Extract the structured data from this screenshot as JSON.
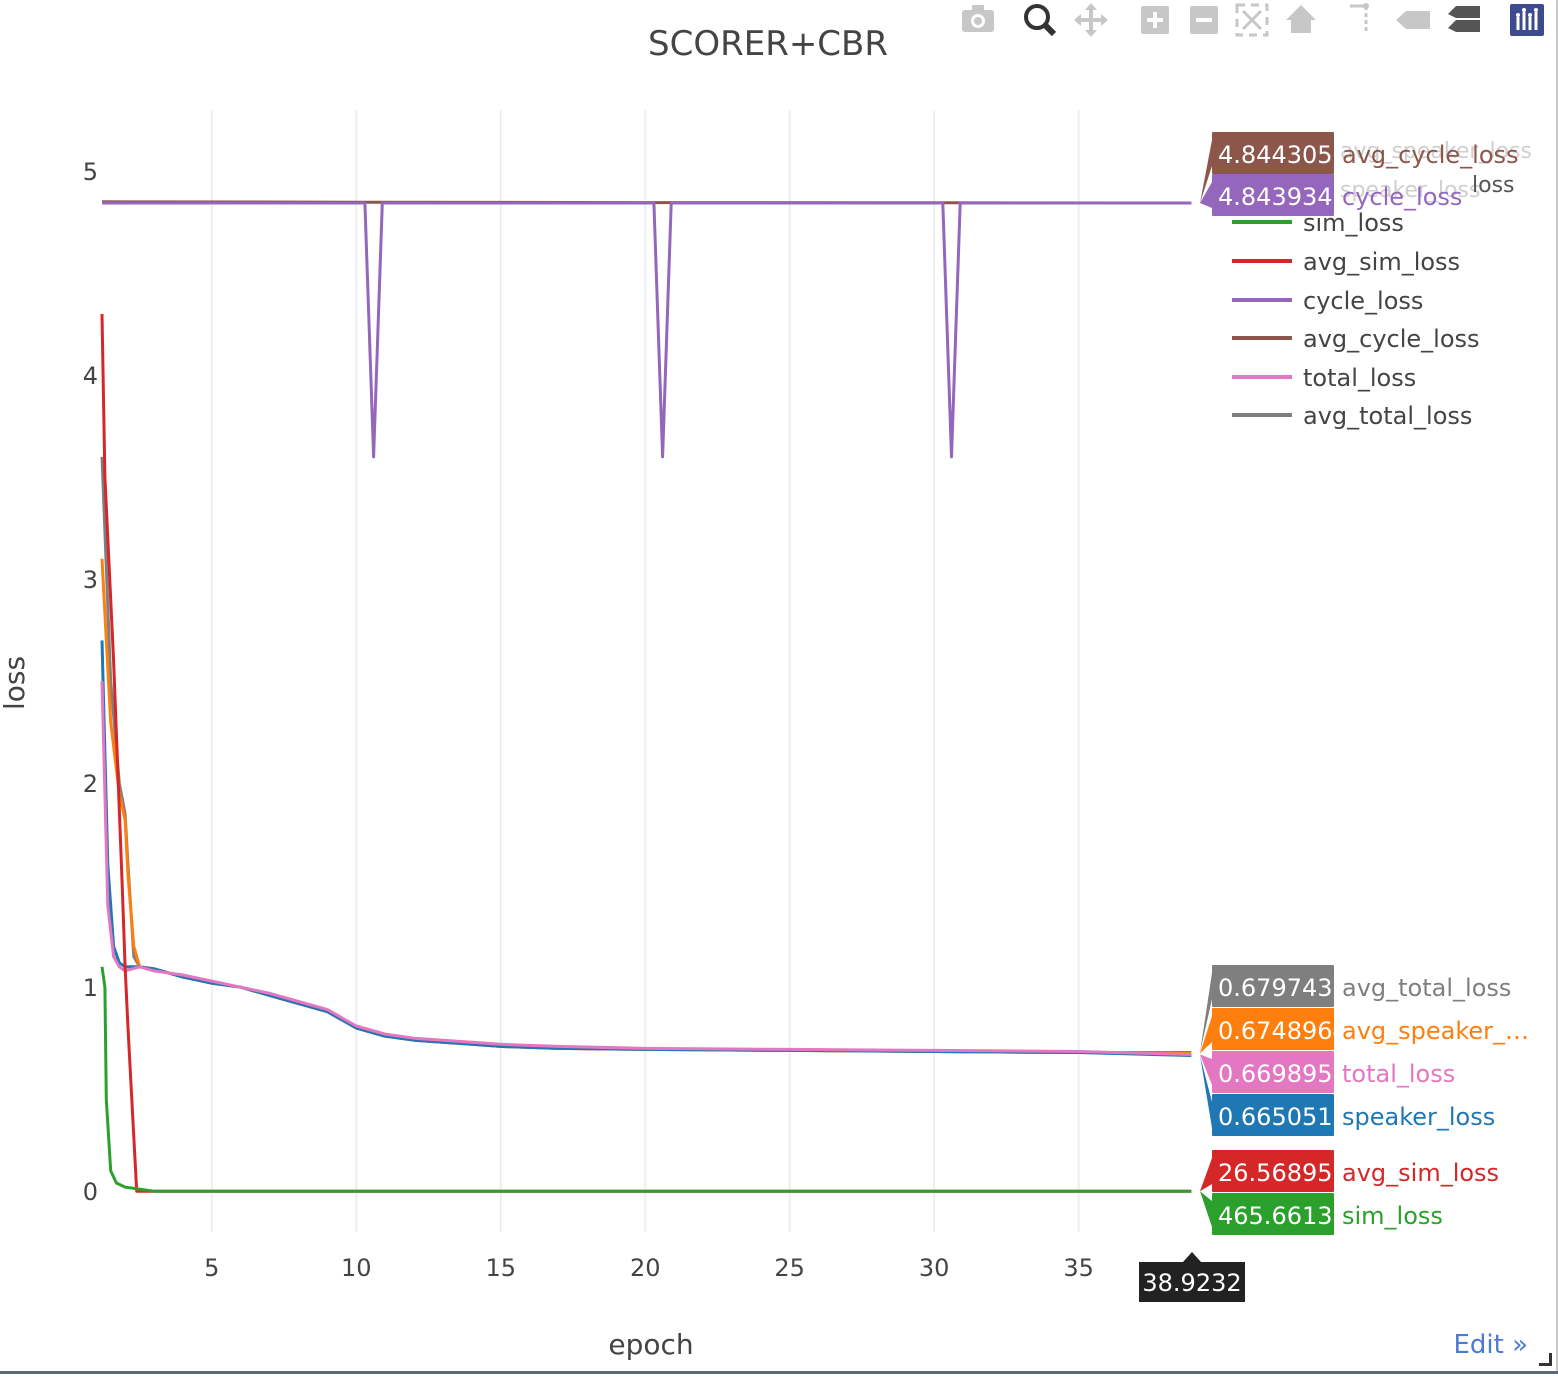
{
  "chart_data": {
    "type": "line",
    "title": "SCORER+CBR",
    "xlabel": "epoch",
    "ylabel": "loss",
    "xlim": [
      1.2,
      39.2
    ],
    "ylim": [
      -0.2,
      5.3
    ],
    "xticks": [
      5,
      10,
      15,
      20,
      25,
      30,
      35
    ],
    "yticks": [
      0,
      1,
      2,
      3,
      4,
      5
    ],
    "grid": true,
    "legend_position": "top-right",
    "series": [
      {
        "name": "sim_loss",
        "color": "#2ca02c",
        "x": [
          1.2,
          1.3,
          1.35,
          1.5,
          1.7,
          2,
          3,
          5,
          10,
          20,
          30,
          38.9
        ],
        "y": [
          1.1,
          1.0,
          0.45,
          0.1,
          0.04,
          0.02,
          0.0,
          0.0,
          0.0,
          0.0,
          0.0,
          0.0
        ]
      },
      {
        "name": "avg_sim_loss",
        "color": "#d62728",
        "x": [
          1.2,
          1.3,
          1.6,
          1.9,
          2.0,
          2.1,
          2.4,
          3,
          5,
          10,
          20,
          30,
          38.9
        ],
        "y": [
          4.3,
          3.5,
          2.6,
          1.5,
          1.1,
          0.8,
          0.0,
          0.0,
          0.0,
          0.0,
          0.0,
          0.0,
          0.0
        ]
      },
      {
        "name": "speaker_loss",
        "color": "#1f77b4",
        "x": [
          1.2,
          1.4,
          1.6,
          1.8,
          2.0,
          2.5,
          3,
          4,
          5,
          6,
          7,
          8,
          9,
          10,
          11,
          12,
          13,
          14,
          15,
          17,
          20,
          25,
          30,
          35,
          38.9
        ],
        "y": [
          2.7,
          1.6,
          1.2,
          1.12,
          1.1,
          1.1,
          1.09,
          1.05,
          1.02,
          1.0,
          0.96,
          0.92,
          0.88,
          0.8,
          0.76,
          0.74,
          0.73,
          0.72,
          0.71,
          0.7,
          0.695,
          0.69,
          0.685,
          0.68,
          0.665
        ]
      },
      {
        "name": "avg_speaker_loss",
        "color": "#ff7f0e",
        "x": [
          1.2,
          1.5,
          1.8,
          2.0,
          2.1,
          2.3,
          2.5,
          3,
          4,
          5,
          6,
          7,
          8,
          9,
          10,
          11,
          12,
          13,
          14,
          15,
          17,
          20,
          25,
          30,
          35,
          38.9
        ],
        "y": [
          3.1,
          2.3,
          1.95,
          1.82,
          1.55,
          1.2,
          1.1,
          1.09,
          1.05,
          1.02,
          1.0,
          0.96,
          0.92,
          0.88,
          0.8,
          0.76,
          0.74,
          0.73,
          0.72,
          0.71,
          0.7,
          0.695,
          0.69,
          0.685,
          0.68,
          0.675
        ]
      },
      {
        "name": "cycle_loss",
        "color": "#9467bd",
        "x": [
          1.2,
          10.3,
          10.6,
          10.9,
          11.0,
          20.3,
          20.6,
          20.9,
          21.0,
          30.3,
          30.6,
          30.9,
          31.0,
          38.9
        ],
        "y": [
          4.844,
          4.844,
          3.6,
          4.844,
          4.844,
          4.844,
          3.6,
          4.844,
          4.844,
          4.844,
          3.6,
          4.844,
          4.844,
          4.844
        ]
      },
      {
        "name": "avg_cycle_loss",
        "color": "#8c564b",
        "x": [
          1.2,
          10,
          20,
          30,
          38.9
        ],
        "y": [
          4.85,
          4.848,
          4.846,
          4.845,
          4.844
        ]
      },
      {
        "name": "total_loss",
        "color": "#e377c2",
        "x": [
          1.2,
          1.4,
          1.6,
          1.8,
          2.0,
          2.5,
          3,
          4,
          5,
          6,
          7,
          8,
          9,
          10,
          11,
          12,
          13,
          14,
          15,
          17,
          20,
          25,
          30,
          35,
          38.9
        ],
        "y": [
          2.5,
          1.4,
          1.15,
          1.1,
          1.08,
          1.1,
          1.08,
          1.06,
          1.03,
          1.0,
          0.97,
          0.93,
          0.89,
          0.81,
          0.77,
          0.75,
          0.74,
          0.73,
          0.72,
          0.71,
          0.7,
          0.695,
          0.69,
          0.685,
          0.67
        ]
      },
      {
        "name": "avg_total_loss",
        "color": "#7f7f7f",
        "x": [
          1.2,
          1.5,
          1.8,
          2.0,
          2.1,
          2.3,
          2.5,
          3,
          4,
          5,
          6,
          7,
          8,
          9,
          10,
          11,
          12,
          13,
          14,
          15,
          17,
          20,
          25,
          30,
          35,
          38.9
        ],
        "y": [
          3.6,
          2.5,
          2.0,
          1.85,
          1.6,
          1.15,
          1.1,
          1.09,
          1.05,
          1.02,
          1.0,
          0.96,
          0.92,
          0.88,
          0.8,
          0.76,
          0.74,
          0.73,
          0.72,
          0.71,
          0.7,
          0.695,
          0.69,
          0.685,
          0.68,
          0.68
        ]
      }
    ],
    "legend_entries": [
      "sim_loss",
      "avg_sim_loss",
      "cycle_loss",
      "avg_cycle_loss",
      "total_loss",
      "avg_total_loss"
    ],
    "legend_hidden_fragments": [
      "speaker_loss",
      "avg_speaker_loss"
    ],
    "hover": {
      "x_label": "38.9232",
      "labels": [
        {
          "value": "4.844305",
          "name": "avg_cycle_loss",
          "color": "#8c564b",
          "y": 4.844305
        },
        {
          "value": "4.843934",
          "name": "cycle_loss",
          "color": "#9467bd",
          "y": 4.843934
        },
        {
          "value": "0.6797433",
          "name": "avg_total_loss",
          "color": "#7f7f7f",
          "y": 0.6797433
        },
        {
          "value": "0.6748964",
          "name": "avg_speaker_…",
          "color": "#ff7f0e",
          "y": 0.6748964
        },
        {
          "value": "0.6698959",
          "name": "total_loss",
          "color": "#e377c2",
          "y": 0.6698959
        },
        {
          "value": "0.6650519",
          "name": "speaker_loss",
          "color": "#1f77b4",
          "y": 0.6650519
        },
        {
          "value": "26.56895μ",
          "name": "avg_sim_loss",
          "color": "#d62728",
          "y": 2.65e-05
        },
        {
          "value": "465.6613p",
          "name": "sim_loss",
          "color": "#2ca02c",
          "y": 0.0
        }
      ]
    }
  },
  "modebar": {
    "icons": [
      "camera-icon",
      "zoom-icon",
      "pan-icon",
      "zoom-in-icon",
      "zoom-out-icon",
      "autoscale-icon",
      "reset-axes-icon",
      "spike-lines-icon",
      "hover-closest-icon",
      "hover-compare-icon",
      "plotly-logo-icon"
    ]
  },
  "edit_link": "Edit »"
}
